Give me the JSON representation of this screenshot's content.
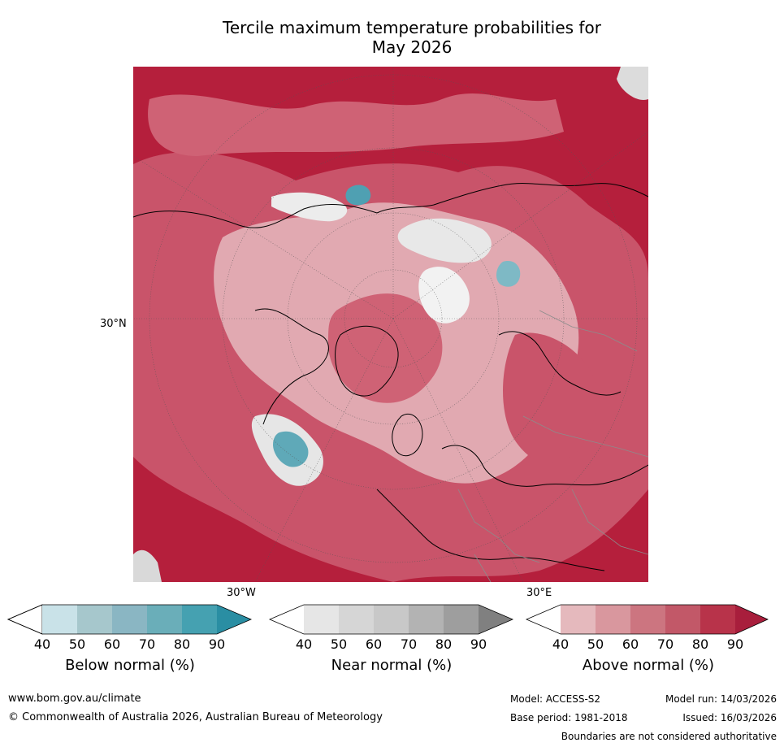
{
  "title": {
    "line1": "Tercile maximum temperature probabilities for",
    "line2": "May 2026"
  },
  "map": {
    "projection": "north-polar-stereographic",
    "labels": {
      "lat_30n": "30°N",
      "lon_30w": "30°W",
      "lon_30e": "30°E"
    }
  },
  "legends": [
    {
      "label": "Below normal (%)",
      "ticks": [
        "40",
        "50",
        "60",
        "70",
        "80",
        "90"
      ],
      "colors": [
        "#ffffff",
        "#c9e2e8",
        "#a6c7cc",
        "#8ab6c3",
        "#6aaeb9",
        "#45a1b1",
        "#2a8ea3"
      ]
    },
    {
      "label": "Near normal (%)",
      "ticks": [
        "40",
        "50",
        "60",
        "70",
        "80",
        "90"
      ],
      "colors": [
        "#ffffff",
        "#e6e6e6",
        "#d6d6d6",
        "#c8c8c8",
        "#b3b3b3",
        "#9e9e9e",
        "#808080"
      ]
    },
    {
      "label": "Above normal (%)",
      "ticks": [
        "40",
        "50",
        "60",
        "70",
        "80",
        "90"
      ],
      "colors": [
        "#ffffff",
        "#e5b9bd",
        "#d9979e",
        "#cc7580",
        "#c25868",
        "#b8334a",
        "#a81e3c"
      ]
    }
  ],
  "footer": {
    "website": "www.bom.gov.au/climate",
    "copyright": "© Commonwealth of Australia 2026, Australian Bureau of Meteorology",
    "model": "Model: ACCESS-S2",
    "model_run": "Model run: 14/03/2026",
    "base_period": "Base period: 1981-2018",
    "issued": "Issued: 16/03/2026",
    "disclaimer": "Boundaries are not considered authoritative"
  },
  "colors": {
    "above_dark": "#b51f3c",
    "above_mid": "#c9546a",
    "above_light": "#e1a9b1",
    "near_light": "#dedede",
    "below_mid": "#5fa9b8"
  }
}
